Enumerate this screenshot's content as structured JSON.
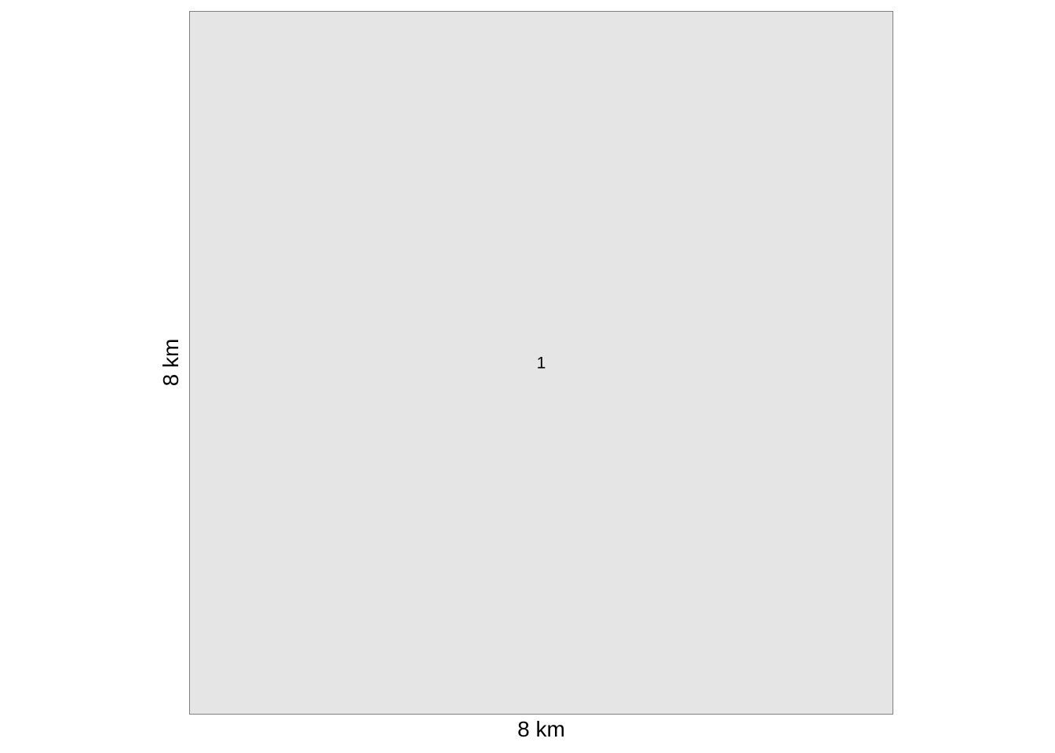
{
  "diagram": {
    "region": {
      "label": "1",
      "fill_color": "#e5e5e5",
      "border_color": "#7f7f7f"
    },
    "width_label": "8 km",
    "height_label": "8 km"
  }
}
